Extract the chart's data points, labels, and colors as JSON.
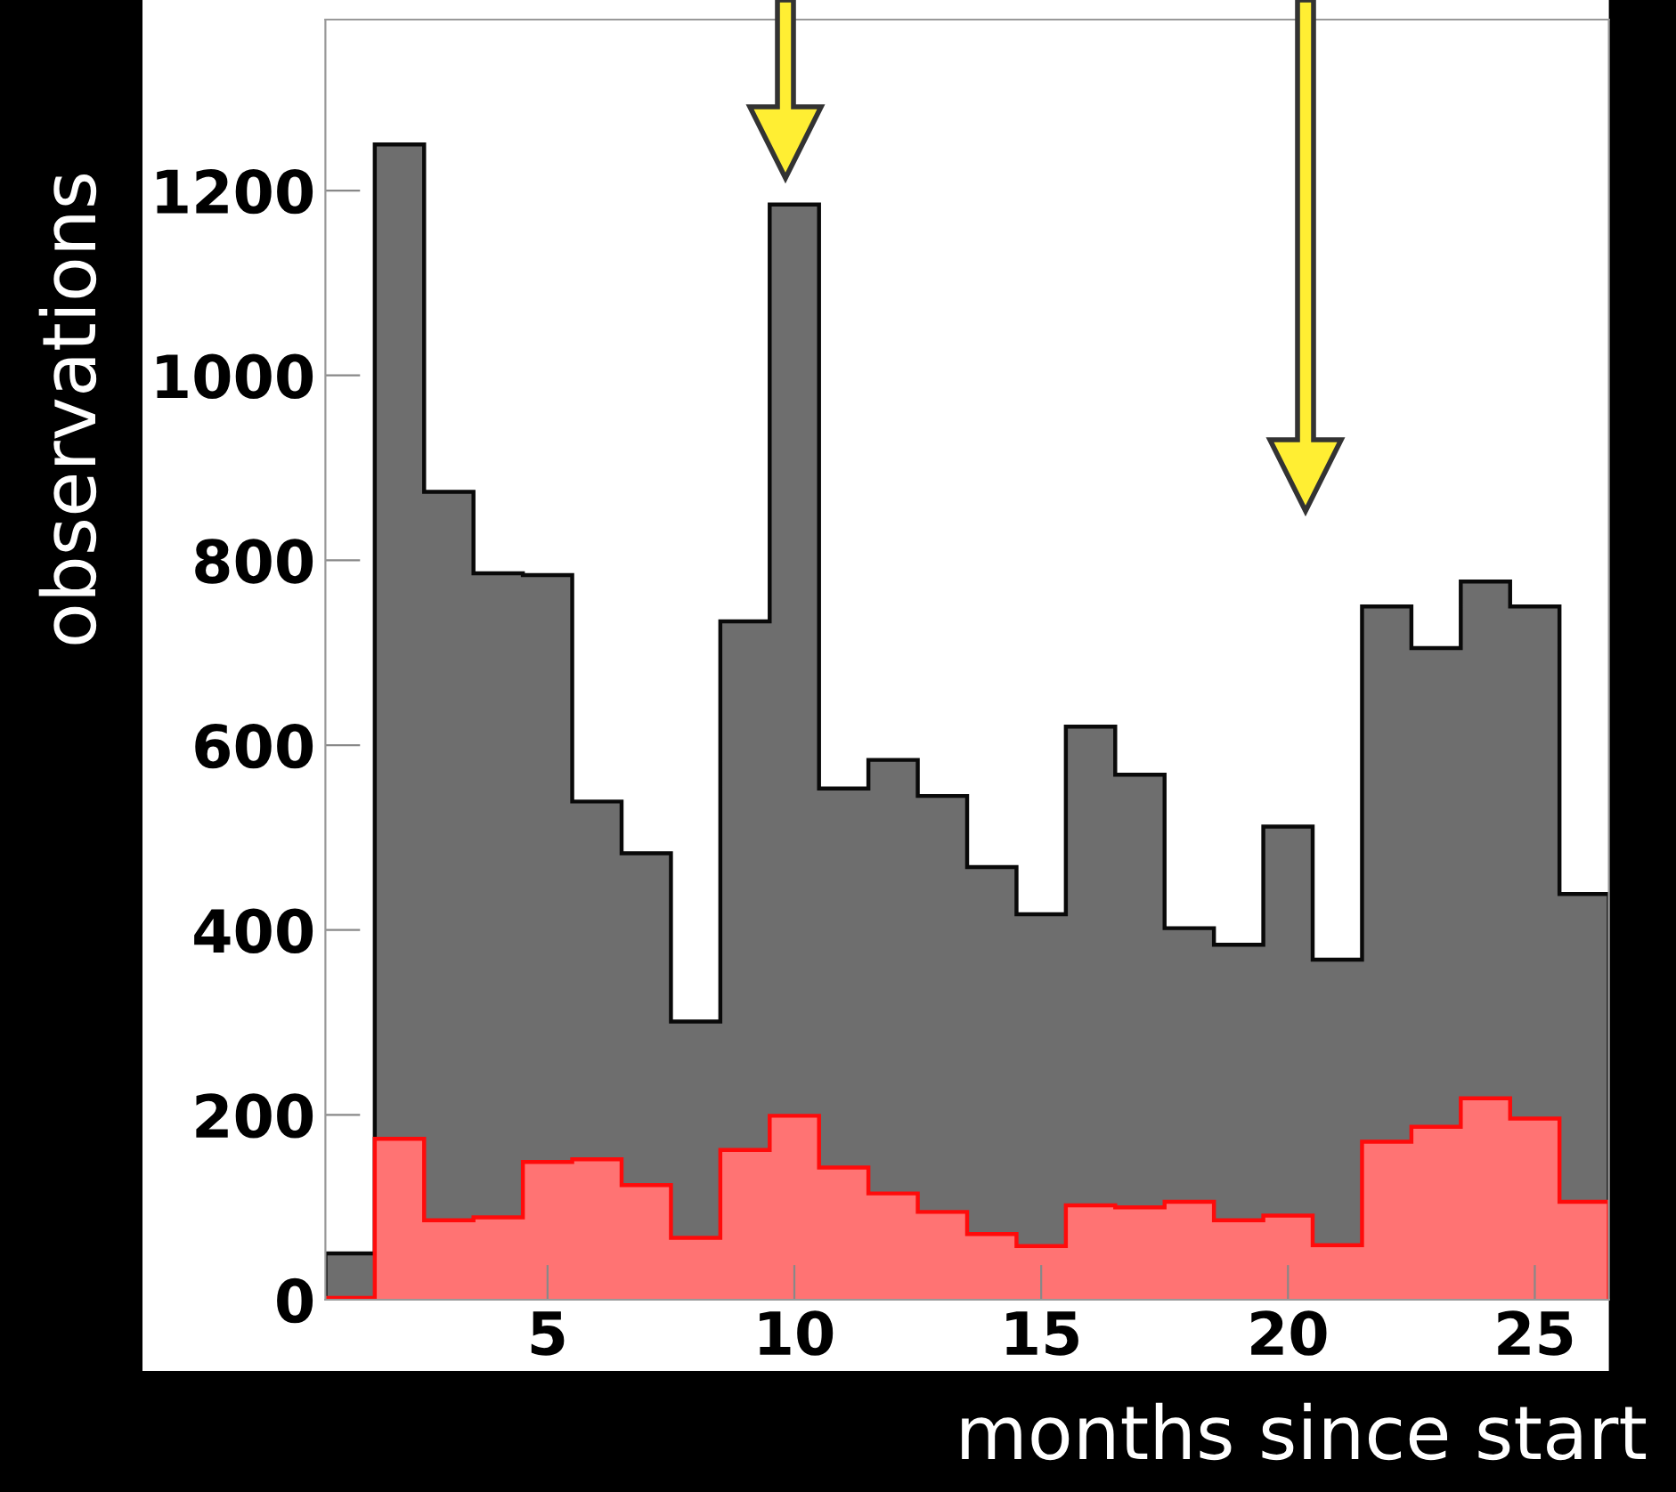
{
  "chart_data": {
    "type": "histogram",
    "xlabel": "months since start",
    "ylabel": "observations",
    "bins": [
      0.5,
      1.5,
      2.5,
      3.5,
      4.5,
      5.5,
      6.5,
      7.5,
      8.5,
      9.5,
      10.5,
      11.5,
      12.5,
      13.5,
      14.5,
      15.5,
      16.5,
      17.5,
      18.5,
      19.5,
      20.5,
      21.5,
      22.5,
      23.5,
      24.5,
      25.5,
      26.5
    ],
    "series": [
      {
        "color": "#6e6e6e",
        "values": [
          50,
          1250,
          874,
          786,
          784,
          539,
          483,
          301,
          734,
          1185,
          553,
          584,
          545,
          468,
          417,
          620,
          568,
          402,
          384,
          512,
          368,
          750,
          705,
          777,
          750,
          439
        ]
      },
      {
        "color": "#ff7373",
        "values": [
          2,
          174,
          86,
          89,
          149,
          152,
          124,
          67,
          162,
          199,
          143,
          115,
          95,
          71,
          58,
          102,
          100,
          106,
          86,
          91,
          59,
          171,
          187,
          218,
          196,
          106
        ]
      }
    ],
    "xlim": [
      0.5,
      26.5
    ],
    "xticks": [
      5,
      10,
      15,
      20,
      25
    ],
    "ylim": [
      0,
      1385
    ],
    "yticks": [
      0,
      200,
      400,
      600,
      800,
      1000,
      1200
    ],
    "grid": false,
    "legend": false
  }
}
